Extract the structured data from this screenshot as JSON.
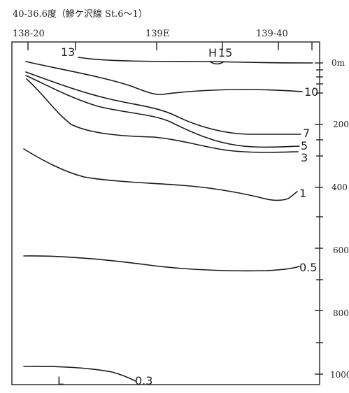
{
  "header": {
    "title": "40-36.6度（鰺ケ沢線 St.6〜1）",
    "lon_labels": [
      "138-20",
      "139E",
      "139-40"
    ]
  },
  "depth_labels": [
    "0m",
    "200",
    "400",
    "600",
    "800",
    "1000"
  ],
  "isotherm_labels": [
    "13",
    "15",
    "10",
    "7",
    "5",
    "3",
    "1",
    "0.5",
    "0.3"
  ],
  "marks": {
    "high": "H",
    "low": "L"
  }
}
